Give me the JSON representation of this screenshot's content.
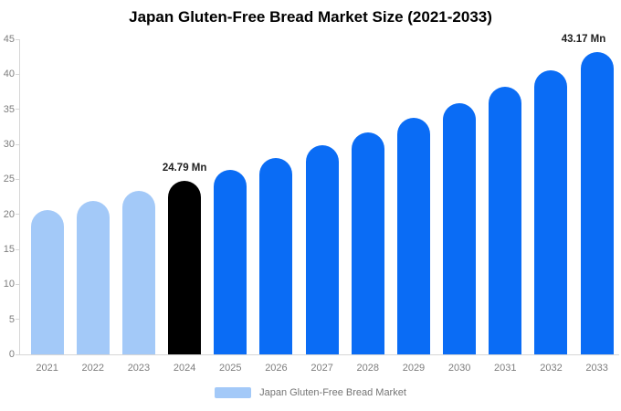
{
  "title": "Japan Gluten-Free Bread Market Size (2021-2033)",
  "legend": {
    "label": "Japan Gluten-Free Bread Market"
  },
  "colors": {
    "background": "#ffffff",
    "axis_line": "#d6d6d6",
    "tick_label": "#7d7d7d",
    "annotation_text": "#1f1f1f",
    "legend_text": "#757575",
    "legend_swatch": "#a3c9f8"
  },
  "chart_data": {
    "type": "bar",
    "title": "Japan Gluten-Free Bread Market Size (2021-2033)",
    "unit": "Mn",
    "xlabel": "",
    "ylabel": "",
    "categories": [
      "2021",
      "2022",
      "2023",
      "2024",
      "2025",
      "2026",
      "2027",
      "2028",
      "2029",
      "2030",
      "2031",
      "2032",
      "2033"
    ],
    "values": [
      20.61,
      21.92,
      23.31,
      24.79,
      26.37,
      28.04,
      29.83,
      31.72,
      33.74,
      35.88,
      38.16,
      40.59,
      43.17
    ],
    "bar_roles": [
      "historical",
      "historical",
      "historical",
      "base_year",
      "forecast",
      "forecast",
      "forecast",
      "forecast",
      "forecast",
      "forecast",
      "forecast",
      "forecast",
      "forecast"
    ],
    "colors": {
      "historical": "#a3c9f8",
      "base_year": "#000000",
      "forecast": "#0a6cf5"
    },
    "annotations": [
      {
        "category": "2024",
        "text": "24.79 Mn"
      },
      {
        "category": "2033",
        "text": "43.17 Mn"
      }
    ],
    "yticks": [
      0,
      5,
      10,
      15,
      20,
      25,
      30,
      35,
      40,
      45
    ],
    "ylim": [
      0,
      45
    ],
    "grid": false,
    "legend": [
      "Japan Gluten-Free Bread Market"
    ],
    "legend_position": "bottom"
  }
}
